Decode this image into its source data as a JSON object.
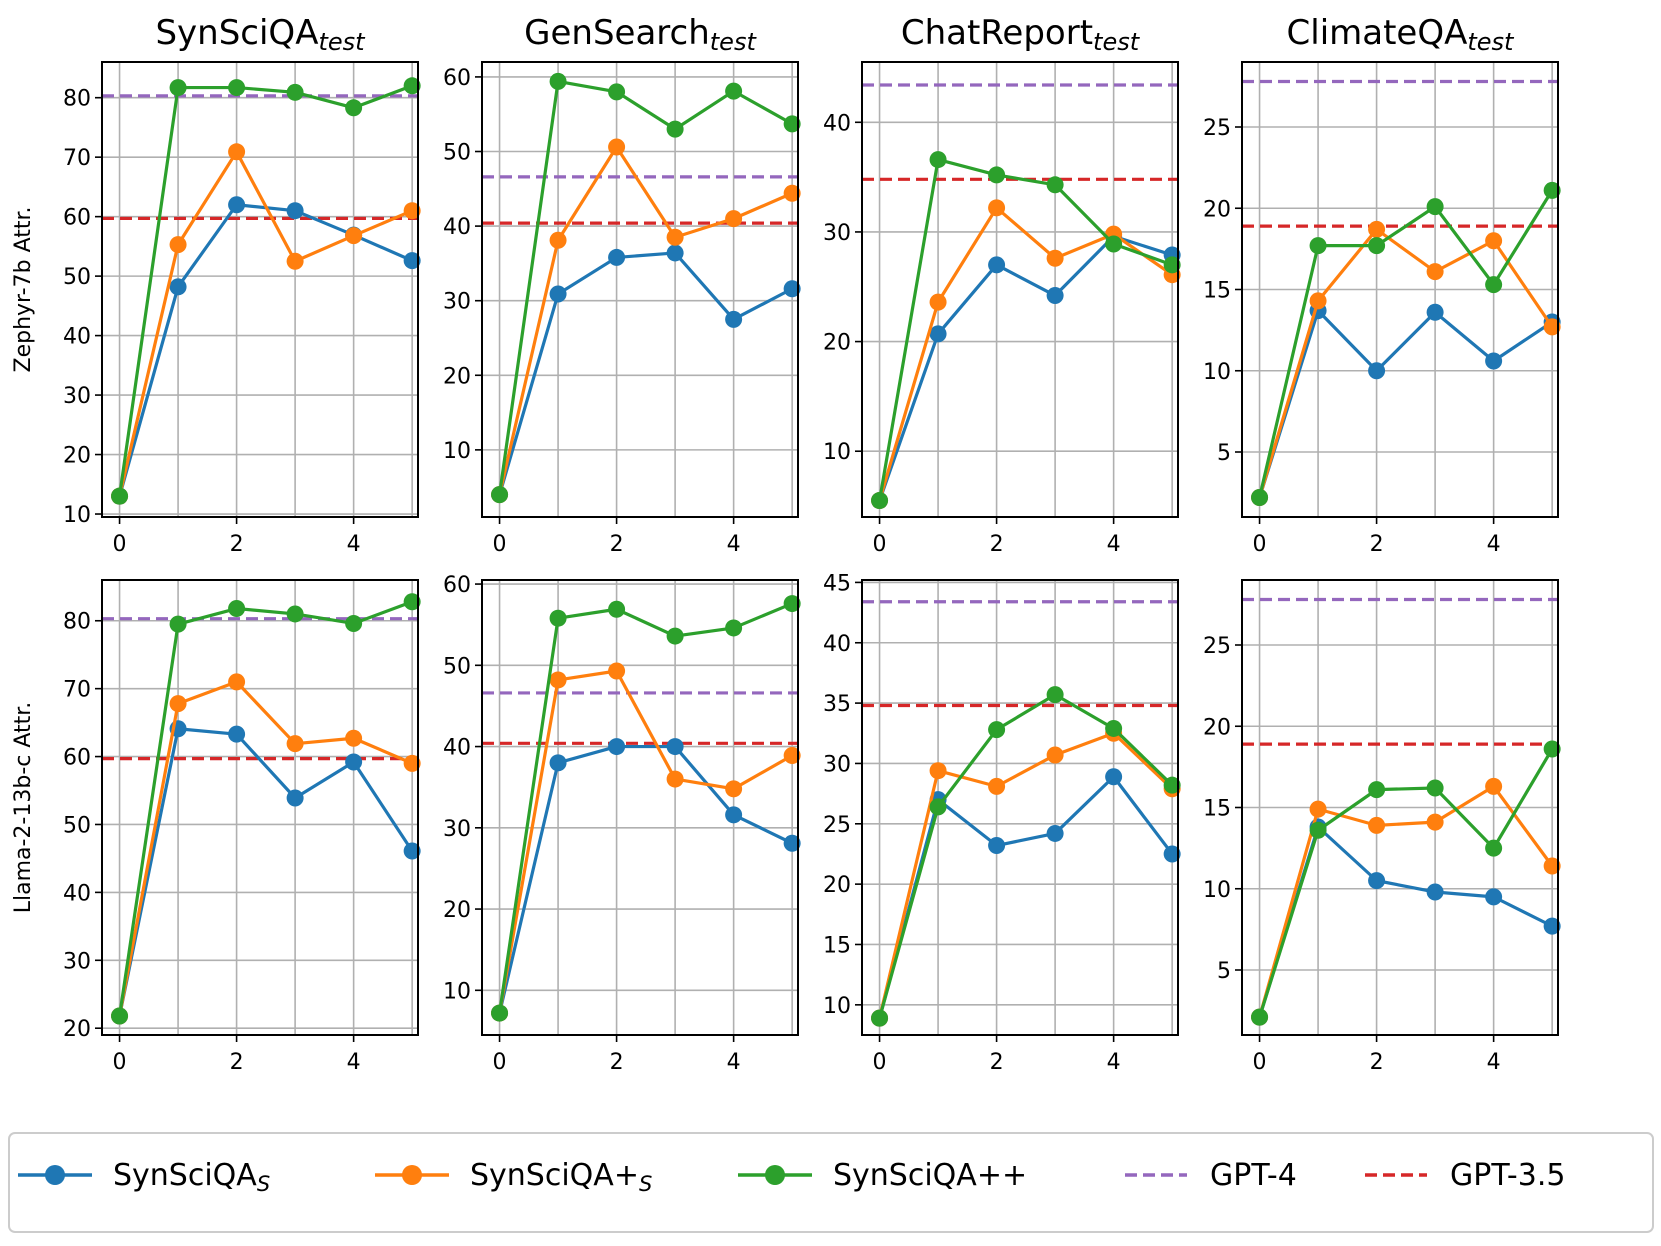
{
  "figure": {
    "colors": {
      "SynSciQA_S": "#1f77b4",
      "SynSciQA+_S": "#ff7f0e",
      "SynSciQA++": "#2ca02c",
      "GPT-4": "#9467bd",
      "GPT-3.5": "#d62728"
    },
    "columns": [
      {
        "title": "SynSciQA",
        "sub": "test"
      },
      {
        "title": "GenSearch",
        "sub": "test"
      },
      {
        "title": "ChatReport",
        "sub": "test"
      },
      {
        "title": "ClimateQA",
        "sub": "test"
      }
    ],
    "rows": [
      {
        "ylabel": "Zephyr-7b Attr."
      },
      {
        "ylabel": "Llama-2-13b-c Attr."
      }
    ],
    "legend": [
      {
        "key": "SynSciQA_S",
        "label": "SynSciQA",
        "sub": "S",
        "style": "line-marker"
      },
      {
        "key": "SynSciQA+_S",
        "label": "SynSciQA+",
        "sub": "S",
        "style": "line-marker"
      },
      {
        "key": "SynSciQA++",
        "label": "SynSciQA++",
        "sub": "",
        "style": "line-marker"
      },
      {
        "key": "GPT-4",
        "label": "GPT-4",
        "sub": "",
        "style": "dashed"
      },
      {
        "key": "GPT-3.5",
        "label": "GPT-3.5",
        "sub": "",
        "style": "dashed"
      }
    ]
  },
  "chart_data": [
    {
      "type": "line",
      "row": 0,
      "col": 0,
      "grid": true,
      "xlim": [
        -0.3,
        5.1
      ],
      "ylim": [
        9.5,
        86
      ],
      "xticks": [
        0,
        2,
        4
      ],
      "yticks": [
        10,
        20,
        30,
        40,
        50,
        60,
        70,
        80
      ],
      "x": [
        0,
        1,
        2,
        3,
        4,
        5
      ],
      "series": [
        {
          "name": "SynSciQA_S",
          "values": [
            13.0,
            48.2,
            62.0,
            61.0,
            56.9,
            52.6
          ]
        },
        {
          "name": "SynSciQA+_S",
          "values": [
            13.0,
            55.3,
            70.9,
            52.5,
            56.8,
            61.0
          ]
        },
        {
          "name": "SynSciQA++",
          "values": [
            13.0,
            81.7,
            81.7,
            80.9,
            78.3,
            82.0
          ]
        }
      ],
      "hlines": [
        {
          "name": "GPT-4",
          "value": 80.3
        },
        {
          "name": "GPT-3.5",
          "value": 59.7
        }
      ]
    },
    {
      "type": "line",
      "row": 0,
      "col": 1,
      "grid": true,
      "xlim": [
        -0.3,
        5.1
      ],
      "ylim": [
        1,
        62
      ],
      "xticks": [
        0,
        2,
        4
      ],
      "yticks": [
        10,
        20,
        30,
        40,
        50,
        60
      ],
      "x": [
        0,
        1,
        2,
        3,
        4,
        5
      ],
      "series": [
        {
          "name": "SynSciQA_S",
          "values": [
            4.0,
            30.9,
            35.8,
            36.4,
            27.5,
            31.6
          ]
        },
        {
          "name": "SynSciQA+_S",
          "values": [
            4.0,
            38.1,
            50.6,
            38.5,
            41.0,
            44.4
          ]
        },
        {
          "name": "SynSciQA++",
          "values": [
            4.0,
            59.4,
            58.0,
            53.0,
            58.1,
            53.7
          ]
        }
      ],
      "hlines": [
        {
          "name": "GPT-4",
          "value": 46.6
        },
        {
          "name": "GPT-3.5",
          "value": 40.4
        }
      ]
    },
    {
      "type": "line",
      "row": 0,
      "col": 2,
      "grid": true,
      "xlim": [
        -0.3,
        5.1
      ],
      "ylim": [
        4,
        45.5
      ],
      "xticks": [
        0,
        2,
        4
      ],
      "yticks": [
        10,
        20,
        30,
        40
      ],
      "x": [
        0,
        1,
        2,
        3,
        4,
        5
      ],
      "series": [
        {
          "name": "SynSciQA_S",
          "values": [
            5.5,
            20.7,
            27.0,
            24.2,
            29.6,
            27.9
          ]
        },
        {
          "name": "SynSciQA+_S",
          "values": [
            5.5,
            23.6,
            32.2,
            27.6,
            29.8,
            26.1
          ]
        },
        {
          "name": "SynSciQA++",
          "values": [
            5.5,
            36.6,
            35.2,
            34.3,
            28.9,
            27.0
          ]
        }
      ],
      "hlines": [
        {
          "name": "GPT-4",
          "value": 43.4
        },
        {
          "name": "GPT-3.5",
          "value": 34.8
        }
      ]
    },
    {
      "type": "line",
      "row": 0,
      "col": 3,
      "grid": true,
      "xlim": [
        -0.3,
        5.1
      ],
      "ylim": [
        1,
        29
      ],
      "xticks": [
        0,
        2,
        4
      ],
      "yticks": [
        5,
        10,
        15,
        20,
        25
      ],
      "x": [
        0,
        1,
        2,
        3,
        4,
        5
      ],
      "series": [
        {
          "name": "SynSciQA_S",
          "values": [
            2.2,
            13.7,
            10.0,
            13.6,
            10.6,
            13.0
          ]
        },
        {
          "name": "SynSciQA+_S",
          "values": [
            2.2,
            14.3,
            18.7,
            16.1,
            18.0,
            12.7
          ]
        },
        {
          "name": "SynSciQA++",
          "values": [
            2.2,
            17.7,
            17.7,
            20.1,
            15.3,
            21.1
          ]
        }
      ],
      "hlines": [
        {
          "name": "GPT-4",
          "value": 27.8
        },
        {
          "name": "GPT-3.5",
          "value": 18.9
        }
      ]
    },
    {
      "type": "line",
      "row": 1,
      "col": 0,
      "grid": true,
      "xlim": [
        -0.3,
        5.1
      ],
      "ylim": [
        19,
        86
      ],
      "xticks": [
        0,
        2,
        4
      ],
      "yticks": [
        20,
        30,
        40,
        50,
        60,
        70,
        80
      ],
      "x": [
        0,
        1,
        2,
        3,
        4,
        5
      ],
      "series": [
        {
          "name": "SynSciQA_S",
          "values": [
            21.8,
            64.1,
            63.3,
            53.9,
            59.2,
            46.1
          ]
        },
        {
          "name": "SynSciQA+_S",
          "values": [
            21.8,
            67.8,
            71.0,
            61.9,
            62.7,
            59.0
          ]
        },
        {
          "name": "SynSciQA++",
          "values": [
            21.8,
            79.5,
            81.8,
            81.0,
            79.6,
            82.8
          ]
        }
      ],
      "hlines": [
        {
          "name": "GPT-4",
          "value": 80.3
        },
        {
          "name": "GPT-3.5",
          "value": 59.7
        }
      ]
    },
    {
      "type": "line",
      "row": 1,
      "col": 1,
      "grid": true,
      "xlim": [
        -0.3,
        5.1
      ],
      "ylim": [
        4.5,
        60.5
      ],
      "xticks": [
        0,
        2,
        4
      ],
      "yticks": [
        10,
        20,
        30,
        40,
        50,
        60
      ],
      "x": [
        0,
        1,
        2,
        3,
        4,
        5
      ],
      "series": [
        {
          "name": "SynSciQA_S",
          "values": [
            7.2,
            38.0,
            40.0,
            40.0,
            31.6,
            28.1
          ]
        },
        {
          "name": "SynSciQA+_S",
          "values": [
            7.2,
            48.2,
            49.3,
            36.0,
            34.8,
            38.9
          ]
        },
        {
          "name": "SynSciQA++",
          "values": [
            7.2,
            55.8,
            56.9,
            53.6,
            54.6,
            57.6
          ]
        }
      ],
      "hlines": [
        {
          "name": "GPT-4",
          "value": 46.6
        },
        {
          "name": "GPT-3.5",
          "value": 40.4
        }
      ]
    },
    {
      "type": "line",
      "row": 1,
      "col": 2,
      "grid": true,
      "xlim": [
        -0.3,
        5.1
      ],
      "ylim": [
        7.5,
        45.2
      ],
      "xticks": [
        0,
        2,
        4
      ],
      "yticks": [
        10,
        15,
        20,
        25,
        30,
        35,
        40,
        45
      ],
      "x": [
        0,
        1,
        2,
        3,
        4,
        5
      ],
      "series": [
        {
          "name": "SynSciQA_S",
          "values": [
            8.9,
            27.0,
            23.2,
            24.2,
            28.9,
            22.5
          ]
        },
        {
          "name": "SynSciQA+_S",
          "values": [
            8.9,
            29.4,
            28.1,
            30.7,
            32.5,
            27.9
          ]
        },
        {
          "name": "SynSciQA++",
          "values": [
            8.9,
            26.4,
            32.8,
            35.7,
            32.9,
            28.2
          ]
        }
      ],
      "hlines": [
        {
          "name": "GPT-4",
          "value": 43.4
        },
        {
          "name": "GPT-3.5",
          "value": 34.8
        }
      ]
    },
    {
      "type": "line",
      "row": 1,
      "col": 3,
      "grid": true,
      "xlim": [
        -0.3,
        5.1
      ],
      "ylim": [
        1,
        29
      ],
      "xticks": [
        0,
        2,
        4
      ],
      "yticks": [
        5,
        10,
        15,
        20,
        25
      ],
      "x": [
        0,
        1,
        2,
        3,
        4,
        5
      ],
      "series": [
        {
          "name": "SynSciQA_S",
          "values": [
            2.1,
            13.8,
            10.5,
            9.8,
            9.5,
            7.7
          ]
        },
        {
          "name": "SynSciQA+_S",
          "values": [
            2.1,
            14.9,
            13.9,
            14.1,
            16.3,
            11.4
          ]
        },
        {
          "name": "SynSciQA++",
          "values": [
            2.1,
            13.6,
            16.1,
            16.2,
            12.5,
            18.6
          ]
        }
      ],
      "hlines": [
        {
          "name": "GPT-4",
          "value": 27.8
        },
        {
          "name": "GPT-3.5",
          "value": 18.9
        }
      ]
    }
  ]
}
